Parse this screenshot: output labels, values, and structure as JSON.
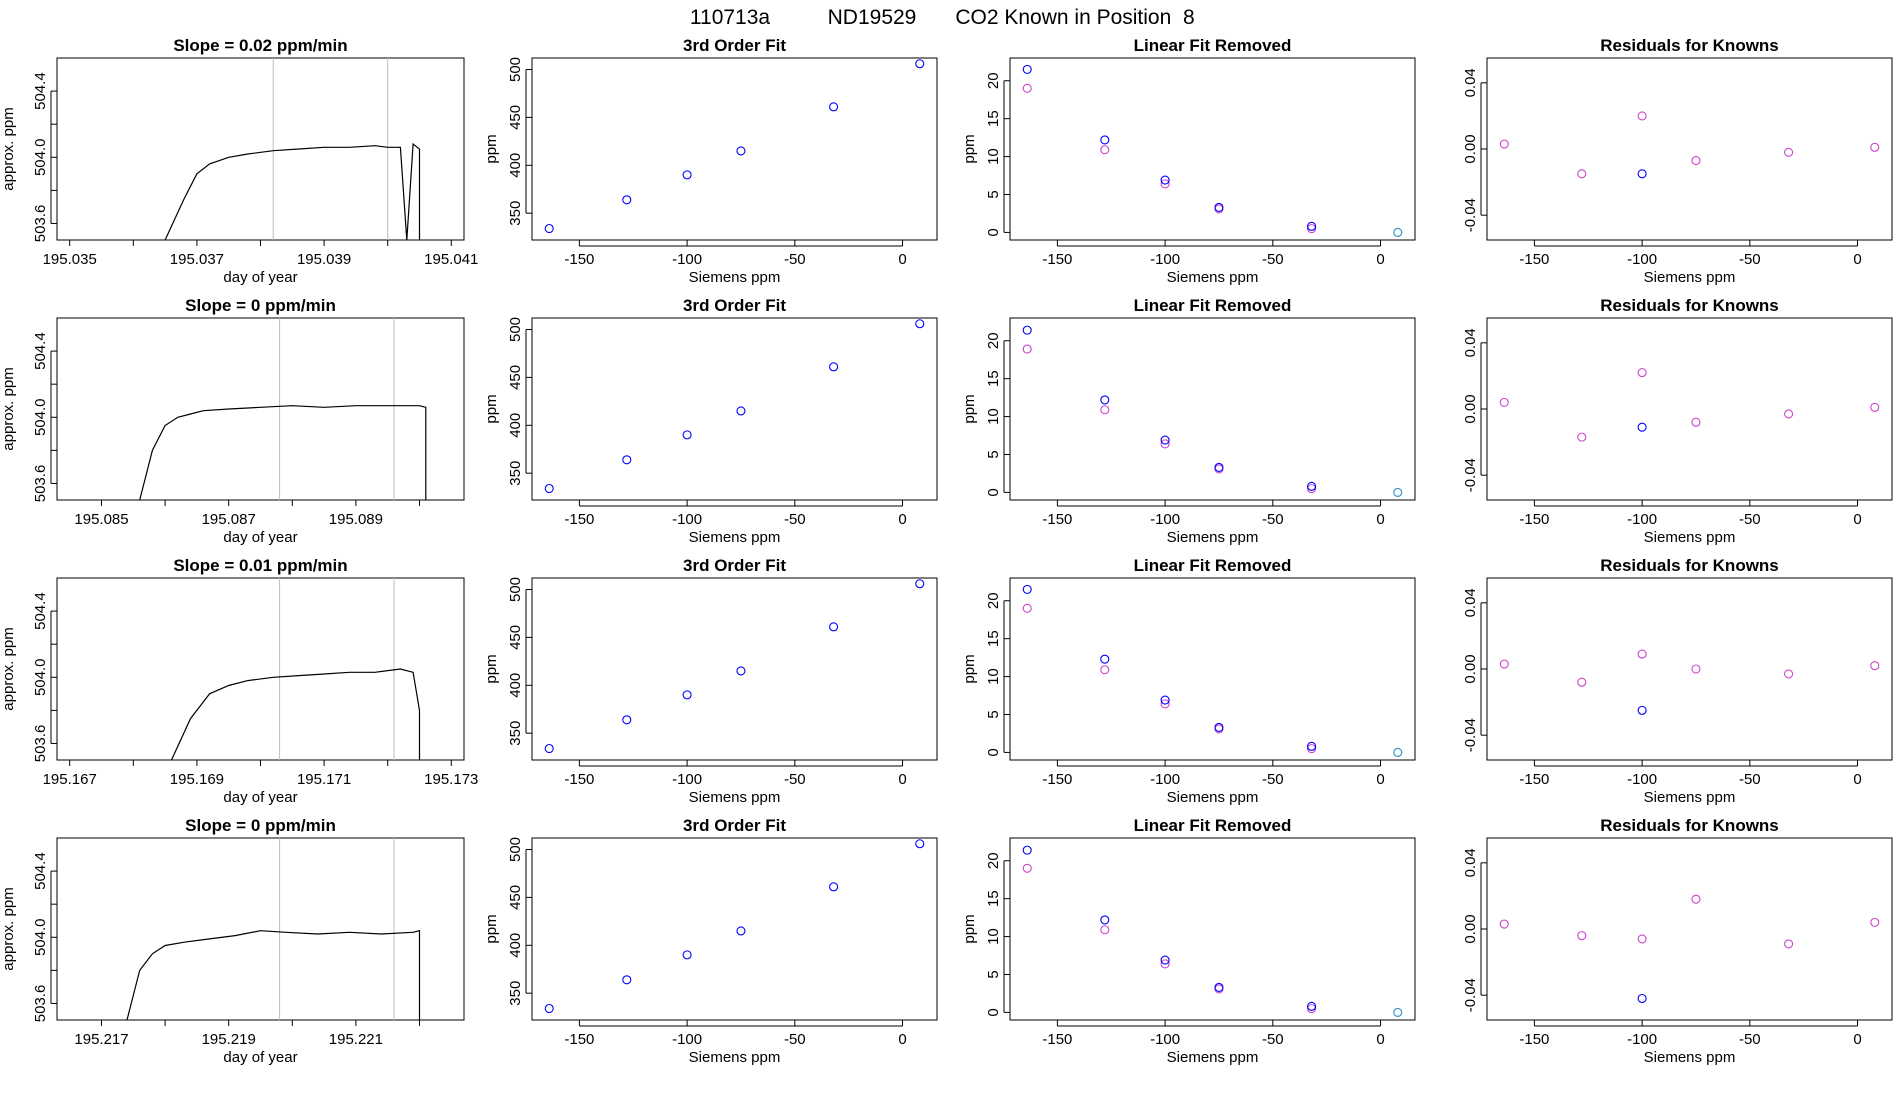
{
  "figure": {
    "title_parts": [
      "110713a",
      "ND19529",
      "CO2 Known in Position  8"
    ]
  },
  "colors": {
    "line": "#000000",
    "vline": "#bebebe",
    "blue_point": "#0000ff",
    "magenta_point": "#cc44cc",
    "cyan_point": "#2aa7c9",
    "red_point": "#ff0000"
  },
  "chart_data": [
    {
      "type": "line",
      "row": 0,
      "col": 0,
      "title": "Slope =  0.02  ppm/min",
      "xlabel": "day of year",
      "ylabel": "approx. ppm",
      "xlim": [
        195.0348,
        195.0412
      ],
      "ylim": [
        503.5,
        504.6
      ],
      "xticks": [
        195.035,
        195.036,
        195.037,
        195.038,
        195.039,
        195.04,
        195.041
      ],
      "xtick_labels": [
        "195.035",
        "",
        "195.037",
        "",
        "195.039",
        "",
        "195.041"
      ],
      "yticks": [
        503.6,
        503.8,
        504.0,
        504.2,
        504.4
      ],
      "ytick_labels": [
        "503.6",
        "",
        "504.0",
        "",
        "504.4"
      ],
      "vlines": [
        195.0382,
        195.04
      ],
      "x": [
        195.0365,
        195.0368,
        195.037,
        195.0372,
        195.0375,
        195.0378,
        195.0382,
        195.0386,
        195.039,
        195.0394,
        195.0398,
        195.04,
        195.0402,
        195.0403,
        195.0404,
        195.0405,
        195.0405
      ],
      "y": [
        503.5,
        503.75,
        503.9,
        503.96,
        504.0,
        504.02,
        504.04,
        504.05,
        504.06,
        504.06,
        504.07,
        504.06,
        504.06,
        503.5,
        504.08,
        504.05,
        503.5
      ]
    },
    {
      "type": "scatter",
      "row": 0,
      "col": 1,
      "title": "3rd Order Fit",
      "xlabel": "Siemens ppm",
      "ylabel": "ppm",
      "xlim": [
        -172,
        16
      ],
      "ylim": [
        322,
        512
      ],
      "xticks": [
        -150,
        -100,
        -50,
        0
      ],
      "yticks": [
        350,
        400,
        450,
        500
      ],
      "points": {
        "x": [
          -164,
          -128,
          -100,
          -75,
          -32,
          8
        ],
        "y": [
          334,
          364,
          390,
          415,
          461,
          506
        ]
      },
      "fit": "cubic"
    },
    {
      "type": "scatter",
      "row": 0,
      "col": 2,
      "title": "Linear Fit Removed",
      "xlabel": "Siemens ppm",
      "ylabel": "ppm",
      "xlim": [
        -172,
        16
      ],
      "ylim": [
        -1,
        23
      ],
      "xticks": [
        -150,
        -100,
        -50,
        0
      ],
      "yticks": [
        0,
        5,
        10,
        15,
        20
      ],
      "blue": {
        "x": [
          -164,
          -128,
          -100,
          -75,
          -32,
          8
        ],
        "y": [
          21.5,
          12.2,
          6.9,
          3.3,
          0.8,
          0
        ]
      },
      "magenta": {
        "x": [
          -164,
          -128,
          -100,
          -75,
          -32,
          8
        ],
        "y": [
          19.0,
          10.9,
          6.4,
          3.1,
          0.5,
          0
        ]
      },
      "fit_curve": "quadratic"
    },
    {
      "type": "scatter",
      "row": 0,
      "col": 3,
      "title": "Residuals for Knowns",
      "xlabel": "Siemens ppm",
      "ylabel": "",
      "xlim": [
        -172,
        16
      ],
      "ylim": [
        -0.055,
        0.055
      ],
      "xticks": [
        -150,
        -100,
        -50,
        0
      ],
      "yticks": [
        -0.04,
        0.0,
        0.04
      ],
      "magenta": {
        "x": [
          -164,
          -128,
          -100,
          -75,
          -32,
          8
        ],
        "y": [
          0.003,
          -0.015,
          0.02,
          -0.007,
          -0.002,
          0.001
        ]
      },
      "blue": {
        "x": [
          -100
        ],
        "y": [
          -0.015
        ]
      }
    },
    {
      "type": "line",
      "row": 1,
      "col": 0,
      "title": "Slope =  0  ppm/min",
      "xlabel": "day of year",
      "ylabel": "approx. ppm",
      "xlim": [
        195.0843,
        195.0907
      ],
      "ylim": [
        503.5,
        504.6
      ],
      "xticks": [
        195.085,
        195.086,
        195.087,
        195.088,
        195.089,
        195.09
      ],
      "xtick_labels": [
        "195.085",
        "",
        "195.087",
        "",
        "195.089",
        ""
      ],
      "yticks": [
        503.6,
        503.8,
        504.0,
        504.2,
        504.4
      ],
      "ytick_labels": [
        "503.6",
        "",
        "504.0",
        "",
        "504.4"
      ],
      "vlines": [
        195.0878,
        195.0896
      ],
      "x": [
        195.0856,
        195.0858,
        195.086,
        195.0862,
        195.0864,
        195.0866,
        195.087,
        195.0875,
        195.088,
        195.0885,
        195.089,
        195.0895,
        195.09,
        195.0901,
        195.0901
      ],
      "y": [
        503.5,
        503.8,
        503.95,
        504.0,
        504.02,
        504.04,
        504.05,
        504.06,
        504.07,
        504.06,
        504.07,
        504.07,
        504.07,
        504.06,
        503.5
      ]
    },
    {
      "type": "scatter",
      "row": 1,
      "col": 1,
      "title": "3rd Order Fit",
      "xlabel": "Siemens ppm",
      "ylabel": "ppm",
      "xlim": [
        -172,
        16
      ],
      "ylim": [
        322,
        512
      ],
      "xticks": [
        -150,
        -100,
        -50,
        0
      ],
      "yticks": [
        350,
        400,
        450,
        500
      ],
      "points": {
        "x": [
          -164,
          -128,
          -100,
          -75,
          -32,
          8
        ],
        "y": [
          334,
          364,
          390,
          415,
          461,
          506
        ]
      },
      "fit": "cubic"
    },
    {
      "type": "scatter",
      "row": 1,
      "col": 2,
      "title": "Linear Fit Removed",
      "xlabel": "Siemens ppm",
      "ylabel": "ppm",
      "xlim": [
        -172,
        16
      ],
      "ylim": [
        -1,
        23
      ],
      "xticks": [
        -150,
        -100,
        -50,
        0
      ],
      "yticks": [
        0,
        5,
        10,
        15,
        20
      ],
      "blue": {
        "x": [
          -164,
          -128,
          -100,
          -75,
          -32,
          8
        ],
        "y": [
          21.4,
          12.2,
          6.9,
          3.3,
          0.8,
          0
        ]
      },
      "magenta": {
        "x": [
          -164,
          -128,
          -100,
          -75,
          -32,
          8
        ],
        "y": [
          18.9,
          10.9,
          6.4,
          3.1,
          0.5,
          0
        ]
      },
      "fit_curve": "quadratic"
    },
    {
      "type": "scatter",
      "row": 1,
      "col": 3,
      "title": "Residuals for Knowns",
      "xlabel": "Siemens ppm",
      "ylabel": "",
      "xlim": [
        -172,
        16
      ],
      "ylim": [
        -0.055,
        0.055
      ],
      "xticks": [
        -150,
        -100,
        -50,
        0
      ],
      "yticks": [
        -0.04,
        0.0,
        0.04
      ],
      "magenta": {
        "x": [
          -164,
          -128,
          -100,
          -75,
          -32,
          8
        ],
        "y": [
          0.004,
          -0.017,
          0.022,
          -0.008,
          -0.003,
          0.001
        ]
      },
      "blue": {
        "x": [
          -100
        ],
        "y": [
          -0.011
        ]
      }
    },
    {
      "type": "line",
      "row": 2,
      "col": 0,
      "title": "Slope =  0.01  ppm/min",
      "xlabel": "day of year",
      "ylabel": "approx. ppm",
      "xlim": [
        195.1668,
        195.1732
      ],
      "ylim": [
        503.5,
        504.6
      ],
      "xticks": [
        195.167,
        195.168,
        195.169,
        195.17,
        195.171,
        195.172,
        195.173
      ],
      "xtick_labels": [
        "195.167",
        "",
        "195.169",
        "",
        "195.171",
        "",
        "195.173"
      ],
      "yticks": [
        503.6,
        503.8,
        504.0,
        504.2,
        504.4
      ],
      "ytick_labels": [
        "503.6",
        "",
        "504.0",
        "",
        "504.4"
      ],
      "vlines": [
        195.1703,
        195.1721
      ],
      "x": [
        195.1686,
        195.1689,
        195.1692,
        195.1695,
        195.1698,
        195.1702,
        195.1706,
        195.171,
        195.1714,
        195.1718,
        195.1722,
        195.1724,
        195.1725,
        195.1725
      ],
      "y": [
        503.5,
        503.75,
        503.9,
        503.95,
        503.98,
        504.0,
        504.01,
        504.02,
        504.03,
        504.03,
        504.05,
        504.03,
        503.8,
        503.5
      ]
    },
    {
      "type": "scatter",
      "row": 2,
      "col": 1,
      "title": "3rd Order Fit",
      "xlabel": "Siemens ppm",
      "ylabel": "ppm",
      "xlim": [
        -172,
        16
      ],
      "ylim": [
        322,
        512
      ],
      "xticks": [
        -150,
        -100,
        -50,
        0
      ],
      "yticks": [
        350,
        400,
        450,
        500
      ],
      "points": {
        "x": [
          -164,
          -128,
          -100,
          -75,
          -32,
          8
        ],
        "y": [
          334,
          364,
          390,
          415,
          461,
          506
        ]
      },
      "fit": "cubic"
    },
    {
      "type": "scatter",
      "row": 2,
      "col": 2,
      "title": "Linear Fit Removed",
      "xlabel": "Siemens ppm",
      "ylabel": "ppm",
      "xlim": [
        -172,
        16
      ],
      "ylim": [
        -1,
        23
      ],
      "xticks": [
        -150,
        -100,
        -50,
        0
      ],
      "yticks": [
        0,
        5,
        10,
        15,
        20
      ],
      "blue": {
        "x": [
          -164,
          -128,
          -100,
          -75,
          -32,
          8
        ],
        "y": [
          21.5,
          12.3,
          6.9,
          3.3,
          0.8,
          0
        ]
      },
      "magenta": {
        "x": [
          -164,
          -128,
          -100,
          -75,
          -32,
          8
        ],
        "y": [
          19.0,
          10.9,
          6.4,
          3.1,
          0.5,
          0
        ]
      },
      "fit_curve": "quadratic"
    },
    {
      "type": "scatter",
      "row": 2,
      "col": 3,
      "title": "Residuals for Knowns",
      "xlabel": "Siemens ppm",
      "ylabel": "",
      "xlim": [
        -172,
        16
      ],
      "ylim": [
        -0.055,
        0.055
      ],
      "xticks": [
        -150,
        -100,
        -50,
        0
      ],
      "yticks": [
        -0.04,
        0.0,
        0.04
      ],
      "magenta": {
        "x": [
          -164,
          -128,
          -100,
          -75,
          -32,
          8
        ],
        "y": [
          0.003,
          -0.008,
          0.009,
          0.0,
          -0.003,
          0.002
        ]
      },
      "blue": {
        "x": [
          -100
        ],
        "y": [
          -0.025
        ]
      }
    },
    {
      "type": "line",
      "row": 3,
      "col": 0,
      "title": "Slope =  0  ppm/min",
      "xlabel": "day of year",
      "ylabel": "approx. ppm",
      "xlim": [
        195.2163,
        195.2227
      ],
      "ylim": [
        503.5,
        504.6
      ],
      "xticks": [
        195.217,
        195.218,
        195.219,
        195.22,
        195.221,
        195.222
      ],
      "xtick_labels": [
        "195.217",
        "",
        "195.219",
        "",
        "195.221",
        ""
      ],
      "yticks": [
        503.6,
        503.8,
        504.0,
        504.2,
        504.4
      ],
      "ytick_labels": [
        "503.6",
        "",
        "504.0",
        "",
        "504.4"
      ],
      "vlines": [
        195.2198,
        195.2216
      ],
      "x": [
        195.2174,
        195.2176,
        195.2178,
        195.218,
        195.2183,
        195.2187,
        195.2191,
        195.2195,
        195.2199,
        195.2204,
        195.2209,
        195.2214,
        195.2219,
        195.222,
        195.222
      ],
      "y": [
        503.5,
        503.8,
        503.9,
        503.95,
        503.97,
        503.99,
        504.01,
        504.04,
        504.03,
        504.02,
        504.03,
        504.02,
        504.03,
        504.04,
        503.5
      ]
    },
    {
      "type": "scatter",
      "row": 3,
      "col": 1,
      "title": "3rd Order Fit",
      "xlabel": "Siemens ppm",
      "ylabel": "ppm",
      "xlim": [
        -172,
        16
      ],
      "ylim": [
        322,
        512
      ],
      "xticks": [
        -150,
        -100,
        -50,
        0
      ],
      "yticks": [
        350,
        400,
        450,
        500
      ],
      "points": {
        "x": [
          -164,
          -128,
          -100,
          -75,
          -32,
          8
        ],
        "y": [
          334,
          364,
          390,
          415,
          461,
          506
        ]
      },
      "fit": "cubic"
    },
    {
      "type": "scatter",
      "row": 3,
      "col": 2,
      "title": "Linear Fit Removed",
      "xlabel": "Siemens ppm",
      "ylabel": "ppm",
      "xlim": [
        -172,
        16
      ],
      "ylim": [
        -1,
        23
      ],
      "xticks": [
        -150,
        -100,
        -50,
        0
      ],
      "yticks": [
        0,
        5,
        10,
        15,
        20
      ],
      "blue": {
        "x": [
          -164,
          -128,
          -100,
          -75,
          -32,
          8
        ],
        "y": [
          21.4,
          12.2,
          6.9,
          3.3,
          0.8,
          0
        ]
      },
      "magenta": {
        "x": [
          -164,
          -128,
          -100,
          -75,
          -32,
          8
        ],
        "y": [
          19.0,
          10.9,
          6.4,
          3.1,
          0.5,
          0
        ]
      },
      "fit_curve": "quadratic"
    },
    {
      "type": "scatter",
      "row": 3,
      "col": 3,
      "title": "Residuals for Knowns",
      "xlabel": "Siemens ppm",
      "ylabel": "",
      "xlim": [
        -172,
        16
      ],
      "ylim": [
        -0.055,
        0.055
      ],
      "xticks": [
        -150,
        -100,
        -50,
        0
      ],
      "yticks": [
        -0.04,
        0.0,
        0.04
      ],
      "magenta": {
        "x": [
          -164,
          -128,
          -100,
          -75,
          -32,
          8
        ],
        "y": [
          0.003,
          -0.004,
          -0.006,
          0.018,
          -0.009,
          0.004
        ]
      },
      "blue": {
        "x": [
          -100
        ],
        "y": [
          -0.042
        ]
      }
    }
  ]
}
